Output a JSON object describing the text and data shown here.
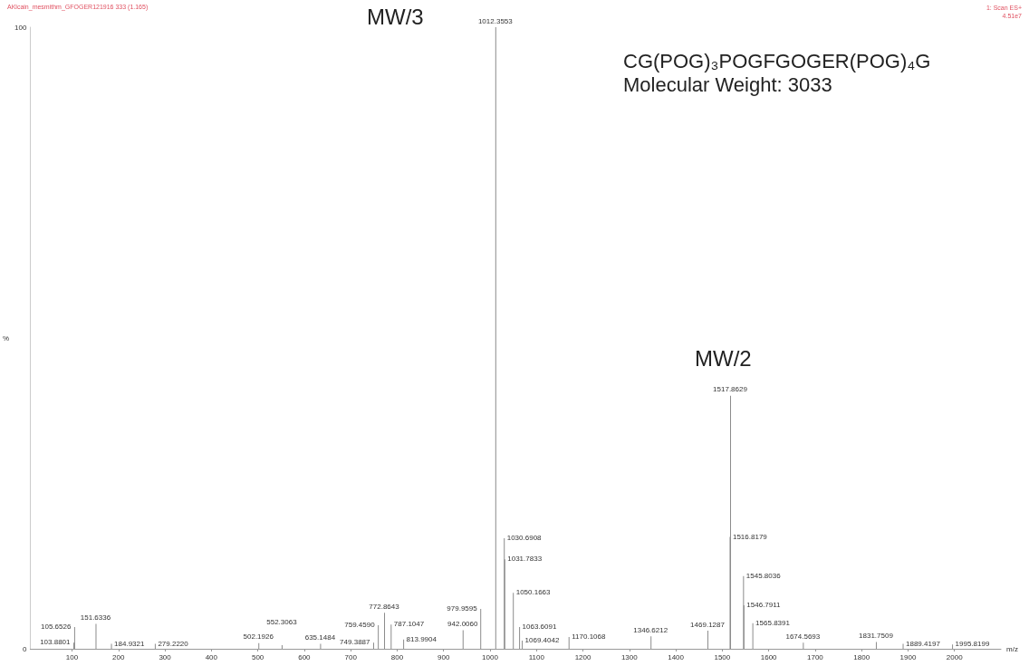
{
  "chart_data": {
    "type": "bar",
    "xlabel": "m/z",
    "ylabel": "%",
    "x": [
      103.8801,
      105.6526,
      151.6336,
      184.9321,
      279.222,
      502.1926,
      552.3063,
      635.1484,
      749.3887,
      759.459,
      772.8643,
      787.1047,
      813.9904,
      942.006,
      979.9595,
      1012.3553,
      1030.6908,
      1031.7833,
      1050.1663,
      1063.6091,
      1069.4042,
      1170.1068,
      1346.6212,
      1469.1287,
      1516.8179,
      1517.8629,
      1545.8036,
      1546.7911,
      1565.8391,
      1674.5693,
      1831.7509,
      1889.4197,
      1995.8199
    ],
    "values": [
      1,
      3.5,
      4,
      0.8,
      0.8,
      0.9,
      0.6,
      0.8,
      1,
      3.8,
      5.8,
      3.9,
      1.5,
      3,
      6.4,
      100,
      17.8,
      14.4,
      9,
      3.5,
      1.3,
      1.9,
      2,
      2.9,
      18,
      40.7,
      11.7,
      7,
      4.1,
      1,
      1.1,
      0.8,
      0.7
    ],
    "color": "#8c8c8c",
    "xlim": [
      10,
      2100
    ],
    "xticks": [
      100,
      200,
      300,
      400,
      500,
      600,
      700,
      800,
      900,
      1000,
      1100,
      1200,
      1300,
      1400,
      1500,
      1600,
      1700,
      1800,
      1900,
      2000
    ],
    "ylim": [
      0,
      100
    ],
    "yticks": [
      0,
      100
    ],
    "grid": false,
    "annotations": [
      "AKlcain_mesmithm_GFOGER121916 333 (1.165)",
      "1: Scan ES+",
      "4.51e7",
      "MW/3",
      "MW/2",
      "CG(POG)₃POGFGOGER(POG)₄G",
      "Molecular Weight: 3033",
      {
        "text": "103.8801",
        "x": 103.8801,
        "y": 1
      },
      {
        "text": "105.6526",
        "x": 105.6526,
        "y": 3.5
      },
      {
        "text": "151.6336",
        "x": 151.6336,
        "y": 4
      },
      {
        "text": "184.9321",
        "x": 184.9321,
        "y": 0.8
      },
      {
        "text": "279.2220",
        "x": 279.222,
        "y": 0.8
      },
      {
        "text": "502.1926",
        "x": 502.1926,
        "y": 0.9
      },
      {
        "text": "552.3063",
        "x": 552.3063,
        "y": 0.6
      },
      {
        "text": "635.1484",
        "x": 635.1484,
        "y": 0.8
      },
      {
        "text": "749.3887",
        "x": 749.3887,
        "y": 1
      },
      {
        "text": "759.4590",
        "x": 759.459,
        "y": 3.8
      },
      {
        "text": "772.8643",
        "x": 772.8643,
        "y": 5.8
      },
      {
        "text": "787.1047",
        "x": 787.1047,
        "y": 3.9
      },
      {
        "text": "813.9904",
        "x": 813.9904,
        "y": 1.5
      },
      {
        "text": "942.0060",
        "x": 942.006,
        "y": 3
      },
      {
        "text": "979.9595",
        "x": 979.9595,
        "y": 6.4
      },
      {
        "text": "1012.3553",
        "x": 1012.3553,
        "y": 100
      },
      {
        "text": "1030.6908",
        "x": 1030.6908,
        "y": 17.8
      },
      {
        "text": "1031.7833",
        "x": 1031.7833,
        "y": 14.4
      },
      {
        "text": "1050.1663",
        "x": 1050.1663,
        "y": 9
      },
      {
        "text": "1063.6091",
        "x": 1063.6091,
        "y": 3.5
      },
      {
        "text": "1069.4042",
        "x": 1069.4042,
        "y": 1.3
      },
      {
        "text": "1170.1068",
        "x": 1170.1068,
        "y": 1.9
      },
      {
        "text": "1346.6212",
        "x": 1346.6212,
        "y": 2
      },
      {
        "text": "1469.1287",
        "x": 1469.1287,
        "y": 2.9
      },
      {
        "text": "1516.8179",
        "x": 1516.8179,
        "y": 18
      },
      {
        "text": "1517.8629",
        "x": 1517.8629,
        "y": 40.7
      },
      {
        "text": "1545.8036",
        "x": 1545.8036,
        "y": 11.7
      },
      {
        "text": "1546.7911",
        "x": 1546.7911,
        "y": 7
      },
      {
        "text": "1565.8391",
        "x": 1565.8391,
        "y": 4.1
      },
      {
        "text": "1674.5693",
        "x": 1674.5693,
        "y": 1
      },
      {
        "text": "1831.7509",
        "x": 1831.7509,
        "y": 1.1
      },
      {
        "text": "1889.4197",
        "x": 1889.4197,
        "y": 0.8
      },
      {
        "text": "1995.8199",
        "x": 1995.8199,
        "y": 0.7
      }
    ]
  }
}
